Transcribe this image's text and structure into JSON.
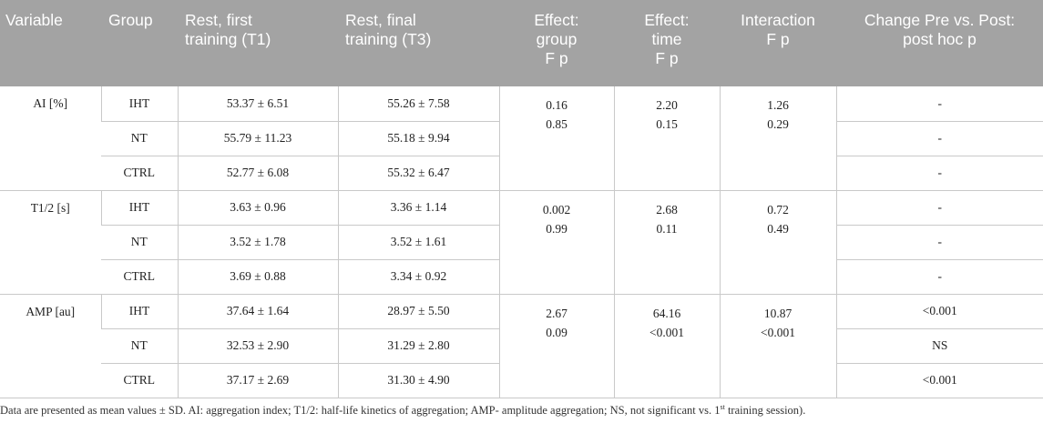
{
  "table": {
    "headers": [
      "Variable",
      "Group",
      "Rest, first\ntraining (T1)",
      "Rest, final\ntraining (T3)",
      "Effect:\ngroup\nF p",
      "Effect:\ntime\nF p",
      "Interaction\nF p",
      "Change Pre vs. Post:\npost hoc p"
    ],
    "blocks": [
      {
        "variable": "AI [%]",
        "group_effect": "0.16\n0.85",
        "time_effect": "2.20\n0.15",
        "interaction": "1.26\n0.29",
        "rows": [
          {
            "group": "IHT",
            "t1": "53.37 ± 6.51",
            "t3": "55.26 ± 7.58",
            "posthoc": "-"
          },
          {
            "group": "NT",
            "t1": "55.79 ± 11.23",
            "t3": "55.18 ± 9.94",
            "posthoc": "-"
          },
          {
            "group": "CTRL",
            "t1": "52.77 ± 6.08",
            "t3": "55.32 ± 6.47",
            "posthoc": "-"
          }
        ]
      },
      {
        "variable": "T1/2 [s]",
        "group_effect": "0.002\n0.99",
        "time_effect": "2.68\n0.11",
        "interaction": "0.72\n0.49",
        "rows": [
          {
            "group": "IHT",
            "t1": "3.63 ± 0.96",
            "t3": "3.36 ± 1.14",
            "posthoc": "-"
          },
          {
            "group": "NT",
            "t1": "3.52 ± 1.78",
            "t3": "3.52 ± 1.61",
            "posthoc": "-"
          },
          {
            "group": "CTRL",
            "t1": "3.69 ± 0.88",
            "t3": "3.34 ± 0.92",
            "posthoc": "-"
          }
        ]
      },
      {
        "variable": "AMP [au]",
        "group_effect": "2.67\n0.09",
        "time_effect": "64.16\n<0.001",
        "interaction": "10.87\n<0.001",
        "rows": [
          {
            "group": "IHT",
            "t1": "37.64 ± 1.64",
            "t3": "28.97 ± 5.50",
            "posthoc": "<0.001"
          },
          {
            "group": "NT",
            "t1": "32.53 ± 2.90",
            "t3": "31.29 ± 2.80",
            "posthoc": "NS"
          },
          {
            "group": "CTRL",
            "t1": "37.17 ± 2.69",
            "t3": "31.30 ± 4.90",
            "posthoc": "<0.001"
          }
        ]
      }
    ]
  },
  "footnote": {
    "before": "Data are presented as mean values ± SD. AI: aggregation index; T1/2: half-life kinetics of aggregation; AMP- amplitude aggregation; NS, not significant vs. 1",
    "superscript": "st",
    "after": " training session)."
  }
}
